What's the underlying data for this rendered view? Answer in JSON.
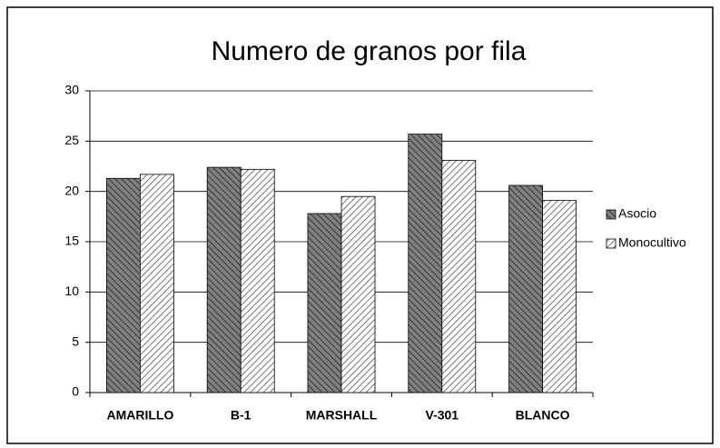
{
  "chart_data": {
    "type": "bar",
    "title": "Numero de granos por fila",
    "categories": [
      "AMARILLO",
      "B-1",
      "MARSHALL",
      "V-301",
      "BLANCO"
    ],
    "series": [
      {
        "name": "Asocio",
        "color": "#808080",
        "values": [
          21.3,
          22.4,
          17.8,
          25.7,
          20.6
        ]
      },
      {
        "name": "Monocultivo",
        "color": "#ffffff",
        "values": [
          21.7,
          22.2,
          19.5,
          23.1,
          19.1
        ]
      }
    ],
    "ylim": [
      0,
      30
    ],
    "yticks": [
      0,
      5,
      10,
      15,
      20,
      25,
      30
    ],
    "grid": true,
    "legend": "right"
  }
}
